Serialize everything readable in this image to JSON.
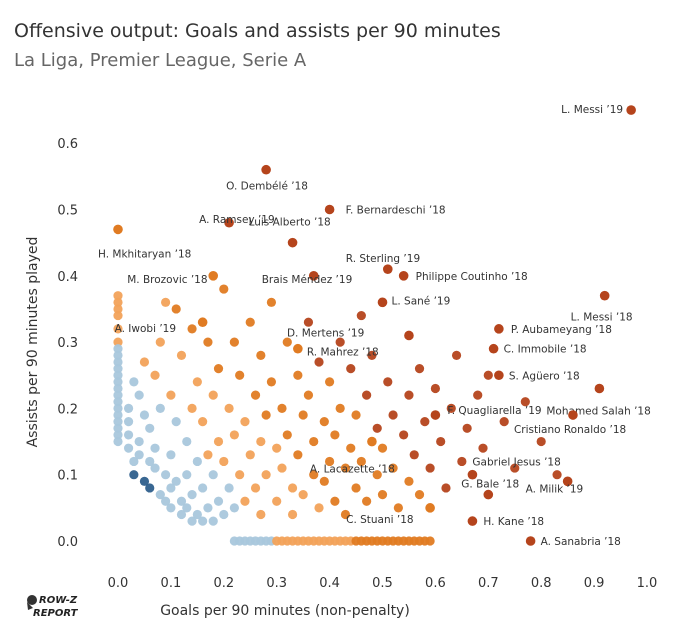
{
  "header": {
    "title": "Offensive output: Goals and assists per 90 minutes",
    "subtitle": "La Liga, Premier League, Serie A"
  },
  "logo": {
    "line1": "ROW-Z",
    "line2": "REPORT"
  },
  "chart_data": {
    "type": "scatter",
    "xlabel": "Goals per 90 minutes (non-penalty)",
    "ylabel": "Assists per 90 minutes played",
    "xlim": [
      -0.05,
      1.0
    ],
    "ylim": [
      -0.02,
      0.66
    ],
    "xticks": [
      "0.0",
      "0.1",
      "0.2",
      "0.3",
      "0.4",
      "0.5",
      "0.6",
      "0.7",
      "0.8",
      "0.9",
      "1.0"
    ],
    "yticks": [
      "0.0",
      "0.1",
      "0.2",
      "0.3",
      "0.4",
      "0.5",
      "0.6"
    ],
    "grid": false,
    "color_encoding": "diverging color by total output: blue (low) to orange to dark red (high)",
    "colors": {
      "low": "#2e5f8c",
      "midlow": "#a9c7dc",
      "mid": "#f2a25a",
      "high": "#e07b22",
      "top": "#b5441c"
    },
    "labeled_points": [
      {
        "label": "L. Messi ’19",
        "x": 0.97,
        "y": 0.65
      },
      {
        "label": "O. Dembélé ’18",
        "x": 0.28,
        "y": 0.56
      },
      {
        "label": "F. Bernardeschi ’18",
        "x": 0.4,
        "y": 0.5
      },
      {
        "label": "A. Ramsey ’19",
        "x": 0.21,
        "y": 0.48
      },
      {
        "label": "Luis Alberto ’18",
        "x": 0.33,
        "y": 0.45
      },
      {
        "label": "R. Sterling ’19",
        "x": 0.51,
        "y": 0.41
      },
      {
        "label": "H. Mkhitaryan ’18",
        "x": 0.0,
        "y": 0.47
      },
      {
        "label": "M. Brozovic ’18",
        "x": 0.18,
        "y": 0.4
      },
      {
        "label": "Brais Méndez ’19",
        "x": 0.37,
        "y": 0.4
      },
      {
        "label": "Philippe Coutinho ’18",
        "x": 0.54,
        "y": 0.4
      },
      {
        "label": "L. Sané ’19",
        "x": 0.5,
        "y": 0.36
      },
      {
        "label": "L. Messi ’18",
        "x": 0.92,
        "y": 0.37
      },
      {
        "label": "A. Iwobi ’19",
        "x": 0.16,
        "y": 0.33
      },
      {
        "label": "D. Mertens ’19",
        "x": 0.55,
        "y": 0.31
      },
      {
        "label": "P. Aubameyang ’18",
        "x": 0.72,
        "y": 0.32
      },
      {
        "label": "R. Mahrez ’18",
        "x": 0.34,
        "y": 0.29
      },
      {
        "label": "C. Immobile ’18",
        "x": 0.71,
        "y": 0.29
      },
      {
        "label": "S. Agüero ’18",
        "x": 0.72,
        "y": 0.25
      },
      {
        "label": "Mohamed Salah ’18",
        "x": 0.91,
        "y": 0.23
      },
      {
        "label": "F. Quagliarella ’19",
        "x": 0.6,
        "y": 0.19
      },
      {
        "label": "Cristiano Ronaldo ’18",
        "x": 0.86,
        "y": 0.19
      },
      {
        "label": "A. Lacazette ’18",
        "x": 0.48,
        "y": 0.15
      },
      {
        "label": "Gabriel Jesus ’18",
        "x": 0.67,
        "y": 0.1
      },
      {
        "label": "G. Bale ’18",
        "x": 0.7,
        "y": 0.07
      },
      {
        "label": "A. Milik ’19",
        "x": 0.85,
        "y": 0.09
      },
      {
        "label": "C. Stuani ’18",
        "x": 0.59,
        "y": 0.05
      },
      {
        "label": "H. Kane ’18",
        "x": 0.67,
        "y": 0.03
      },
      {
        "label": "A. Sanabria ’18",
        "x": 0.78,
        "y": 0.0
      }
    ],
    "background_points": [
      [
        0.0,
        0.37
      ],
      [
        0.0,
        0.36
      ],
      [
        0.0,
        0.35
      ],
      [
        0.0,
        0.34
      ],
      [
        0.0,
        0.32
      ],
      [
        0.0,
        0.3
      ],
      [
        0.0,
        0.29
      ],
      [
        0.0,
        0.28
      ],
      [
        0.0,
        0.27
      ],
      [
        0.0,
        0.26
      ],
      [
        0.0,
        0.25
      ],
      [
        0.0,
        0.24
      ],
      [
        0.0,
        0.23
      ],
      [
        0.0,
        0.22
      ],
      [
        0.0,
        0.21
      ],
      [
        0.0,
        0.2
      ],
      [
        0.0,
        0.19
      ],
      [
        0.0,
        0.18
      ],
      [
        0.0,
        0.17
      ],
      [
        0.0,
        0.16
      ],
      [
        0.0,
        0.15
      ],
      [
        0.02,
        0.2
      ],
      [
        0.02,
        0.18
      ],
      [
        0.02,
        0.16
      ],
      [
        0.02,
        0.14
      ],
      [
        0.03,
        0.24
      ],
      [
        0.03,
        0.12
      ],
      [
        0.03,
        0.1
      ],
      [
        0.04,
        0.22
      ],
      [
        0.04,
        0.15
      ],
      [
        0.04,
        0.13
      ],
      [
        0.05,
        0.09
      ],
      [
        0.05,
        0.27
      ],
      [
        0.05,
        0.19
      ],
      [
        0.06,
        0.17
      ],
      [
        0.06,
        0.12
      ],
      [
        0.06,
        0.08
      ],
      [
        0.07,
        0.25
      ],
      [
        0.07,
        0.14
      ],
      [
        0.07,
        0.11
      ],
      [
        0.08,
        0.07
      ],
      [
        0.08,
        0.3
      ],
      [
        0.08,
        0.2
      ],
      [
        0.09,
        0.1
      ],
      [
        0.09,
        0.06
      ],
      [
        0.09,
        0.36
      ],
      [
        0.1,
        0.22
      ],
      [
        0.1,
        0.13
      ],
      [
        0.1,
        0.08
      ],
      [
        0.1,
        0.05
      ],
      [
        0.11,
        0.35
      ],
      [
        0.11,
        0.18
      ],
      [
        0.11,
        0.09
      ],
      [
        0.12,
        0.06
      ],
      [
        0.12,
        0.04
      ],
      [
        0.12,
        0.28
      ],
      [
        0.13,
        0.15
      ],
      [
        0.13,
        0.1
      ],
      [
        0.13,
        0.05
      ],
      [
        0.14,
        0.32
      ],
      [
        0.14,
        0.2
      ],
      [
        0.14,
        0.07
      ],
      [
        0.14,
        0.03
      ],
      [
        0.15,
        0.12
      ],
      [
        0.15,
        0.04
      ],
      [
        0.15,
        0.24
      ],
      [
        0.16,
        0.08
      ],
      [
        0.16,
        0.03
      ],
      [
        0.16,
        0.18
      ],
      [
        0.17,
        0.3
      ],
      [
        0.17,
        0.13
      ],
      [
        0.17,
        0.05
      ],
      [
        0.18,
        0.22
      ],
      [
        0.18,
        0.1
      ],
      [
        0.18,
        0.03
      ],
      [
        0.19,
        0.26
      ],
      [
        0.19,
        0.15
      ],
      [
        0.19,
        0.06
      ],
      [
        0.2,
        0.38
      ],
      [
        0.2,
        0.12
      ],
      [
        0.2,
        0.04
      ],
      [
        0.21,
        0.2
      ],
      [
        0.21,
        0.08
      ],
      [
        0.22,
        0.3
      ],
      [
        0.22,
        0.16
      ],
      [
        0.22,
        0.05
      ],
      [
        0.23,
        0.25
      ],
      [
        0.23,
        0.1
      ],
      [
        0.24,
        0.18
      ],
      [
        0.24,
        0.06
      ],
      [
        0.25,
        0.33
      ],
      [
        0.25,
        0.13
      ],
      [
        0.26,
        0.22
      ],
      [
        0.26,
        0.08
      ],
      [
        0.27,
        0.28
      ],
      [
        0.27,
        0.15
      ],
      [
        0.27,
        0.04
      ],
      [
        0.28,
        0.19
      ],
      [
        0.28,
        0.1
      ],
      [
        0.29,
        0.36
      ],
      [
        0.29,
        0.24
      ],
      [
        0.3,
        0.14
      ],
      [
        0.3,
        0.06
      ],
      [
        0.31,
        0.2
      ],
      [
        0.31,
        0.11
      ],
      [
        0.32,
        0.3
      ],
      [
        0.32,
        0.16
      ],
      [
        0.33,
        0.08
      ],
      [
        0.33,
        0.04
      ],
      [
        0.34,
        0.25
      ],
      [
        0.34,
        0.13
      ],
      [
        0.35,
        0.19
      ],
      [
        0.35,
        0.07
      ],
      [
        0.36,
        0.33
      ],
      [
        0.36,
        0.22
      ],
      [
        0.37,
        0.1
      ],
      [
        0.37,
        0.15
      ],
      [
        0.38,
        0.05
      ],
      [
        0.38,
        0.27
      ],
      [
        0.39,
        0.18
      ],
      [
        0.39,
        0.09
      ],
      [
        0.4,
        0.12
      ],
      [
        0.4,
        0.24
      ],
      [
        0.41,
        0.06
      ],
      [
        0.41,
        0.16
      ],
      [
        0.42,
        0.3
      ],
      [
        0.42,
        0.2
      ],
      [
        0.43,
        0.11
      ],
      [
        0.43,
        0.04
      ],
      [
        0.44,
        0.26
      ],
      [
        0.44,
        0.14
      ],
      [
        0.45,
        0.08
      ],
      [
        0.45,
        0.19
      ],
      [
        0.46,
        0.34
      ],
      [
        0.46,
        0.12
      ],
      [
        0.47,
        0.22
      ],
      [
        0.47,
        0.06
      ],
      [
        0.48,
        0.28
      ],
      [
        0.49,
        0.1
      ],
      [
        0.49,
        0.17
      ],
      [
        0.5,
        0.14
      ],
      [
        0.5,
        0.07
      ],
      [
        0.51,
        0.24
      ],
      [
        0.52,
        0.19
      ],
      [
        0.52,
        0.11
      ],
      [
        0.53,
        0.05
      ],
      [
        0.54,
        0.16
      ],
      [
        0.55,
        0.22
      ],
      [
        0.55,
        0.09
      ],
      [
        0.56,
        0.13
      ],
      [
        0.57,
        0.26
      ],
      [
        0.57,
        0.07
      ],
      [
        0.58,
        0.18
      ],
      [
        0.59,
        0.11
      ],
      [
        0.6,
        0.23
      ],
      [
        0.61,
        0.15
      ],
      [
        0.62,
        0.08
      ],
      [
        0.63,
        0.2
      ],
      [
        0.64,
        0.28
      ],
      [
        0.65,
        0.12
      ],
      [
        0.66,
        0.17
      ],
      [
        0.68,
        0.22
      ],
      [
        0.69,
        0.14
      ],
      [
        0.7,
        0.25
      ],
      [
        0.73,
        0.18
      ],
      [
        0.75,
        0.11
      ],
      [
        0.77,
        0.21
      ],
      [
        0.8,
        0.15
      ],
      [
        0.83,
        0.1
      ],
      [
        0.22,
        0.0
      ],
      [
        0.23,
        0.0
      ],
      [
        0.24,
        0.0
      ],
      [
        0.25,
        0.0
      ],
      [
        0.26,
        0.0
      ],
      [
        0.27,
        0.0
      ],
      [
        0.28,
        0.0
      ],
      [
        0.29,
        0.0
      ],
      [
        0.3,
        0.0
      ],
      [
        0.31,
        0.0
      ],
      [
        0.32,
        0.0
      ],
      [
        0.33,
        0.0
      ],
      [
        0.34,
        0.0
      ],
      [
        0.35,
        0.0
      ],
      [
        0.36,
        0.0
      ],
      [
        0.37,
        0.0
      ],
      [
        0.38,
        0.0
      ],
      [
        0.39,
        0.0
      ],
      [
        0.4,
        0.0
      ],
      [
        0.41,
        0.0
      ],
      [
        0.42,
        0.0
      ],
      [
        0.43,
        0.0
      ],
      [
        0.44,
        0.0
      ],
      [
        0.45,
        0.0
      ],
      [
        0.46,
        0.0
      ],
      [
        0.47,
        0.0
      ],
      [
        0.48,
        0.0
      ],
      [
        0.49,
        0.0
      ],
      [
        0.5,
        0.0
      ],
      [
        0.51,
        0.0
      ],
      [
        0.52,
        0.0
      ],
      [
        0.53,
        0.0
      ],
      [
        0.54,
        0.0
      ],
      [
        0.55,
        0.0
      ],
      [
        0.56,
        0.0
      ],
      [
        0.57,
        0.0
      ],
      [
        0.58,
        0.0
      ],
      [
        0.59,
        0.0
      ]
    ]
  }
}
